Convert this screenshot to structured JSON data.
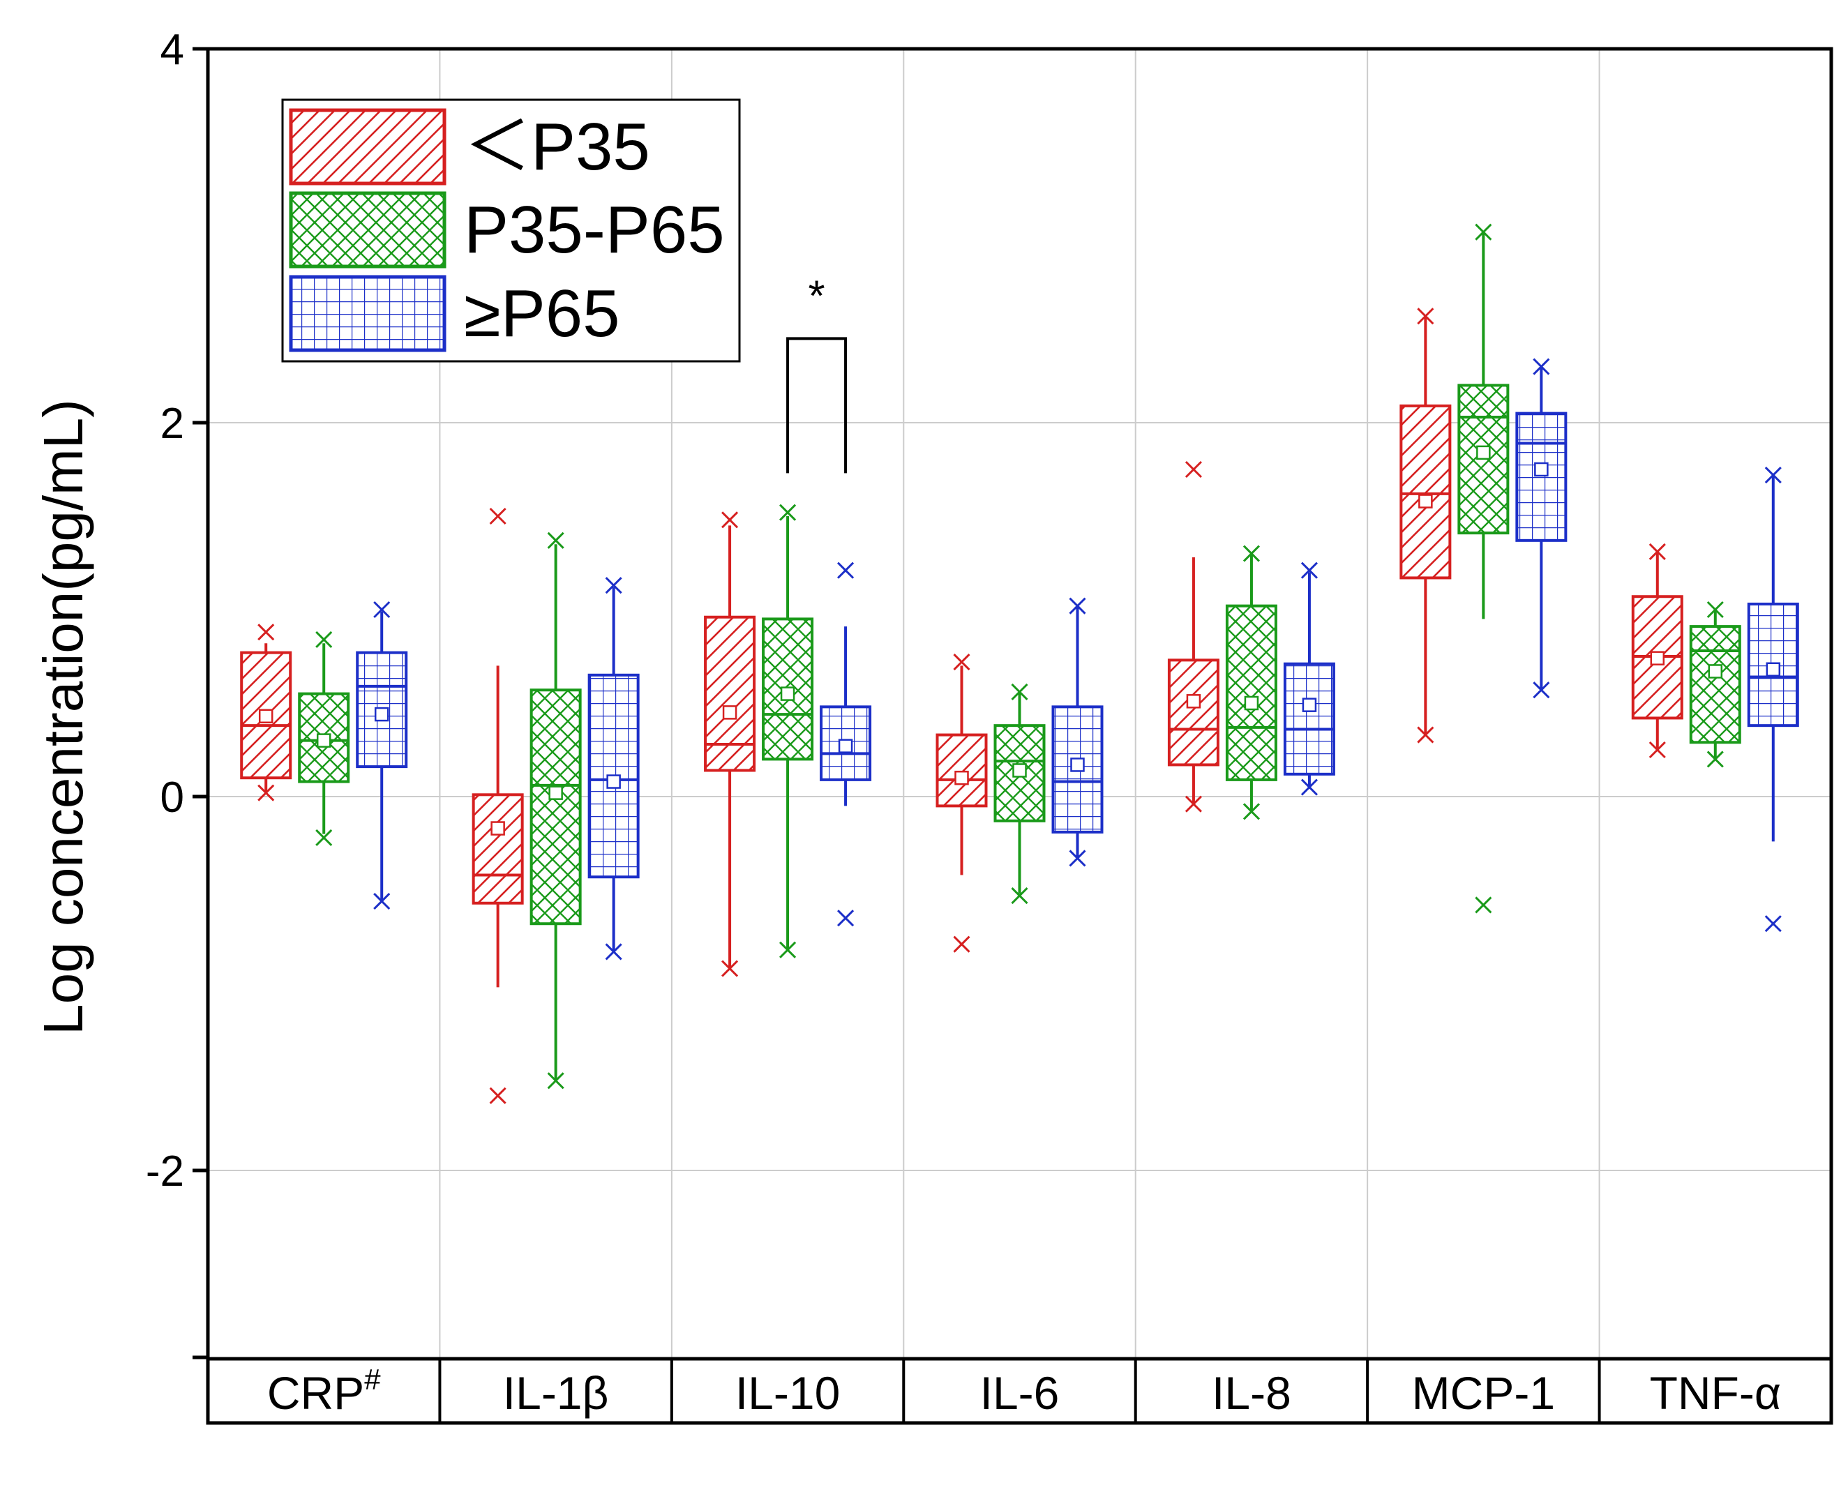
{
  "chart_data": {
    "type": "box",
    "ylabel": "Log concentration(pg/mL)",
    "ylim": [
      -3,
      4
    ],
    "yticks": [
      "4",
      "2",
      "0",
      "-2"
    ],
    "ytick_values": [
      4,
      2,
      0,
      -2
    ],
    "grid": true,
    "legend_position": "top-left",
    "categories": [
      {
        "name": "CRP",
        "superscript": "#"
      },
      {
        "name": "IL-1β",
        "superscript": ""
      },
      {
        "name": "IL-10",
        "superscript": ""
      },
      {
        "name": "IL-6",
        "superscript": ""
      },
      {
        "name": "IL-8",
        "superscript": ""
      },
      {
        "name": "MCP-1",
        "superscript": ""
      },
      {
        "name": "TNF-α",
        "superscript": ""
      }
    ],
    "series": [
      {
        "name": "＜P35",
        "color": "#d62020",
        "pattern": "diagonal",
        "boxes": [
          {
            "q1": 0.1,
            "median": 0.38,
            "q3": 0.77,
            "whisker_low": 0.02,
            "whisker_high": 0.82,
            "mean": 0.43,
            "min": 0.02,
            "max": 0.88
          },
          {
            "q1": -0.57,
            "median": -0.42,
            "q3": 0.01,
            "whisker_low": -1.02,
            "whisker_high": 0.7,
            "mean": -0.17,
            "min": -1.6,
            "max": 1.5
          },
          {
            "q1": 0.14,
            "median": 0.28,
            "q3": 0.96,
            "whisker_low": -0.92,
            "whisker_high": 1.45,
            "mean": 0.45,
            "min": -0.92,
            "max": 1.48
          },
          {
            "q1": -0.05,
            "median": 0.09,
            "q3": 0.33,
            "whisker_low": -0.42,
            "whisker_high": 0.7,
            "mean": 0.1,
            "min": -0.79,
            "max": 0.72
          },
          {
            "q1": 0.17,
            "median": 0.36,
            "q3": 0.73,
            "whisker_low": -0.04,
            "whisker_high": 1.28,
            "mean": 0.51,
            "min": -0.04,
            "max": 1.75
          },
          {
            "q1": 1.17,
            "median": 1.62,
            "q3": 2.09,
            "whisker_low": 0.33,
            "whisker_high": 2.57,
            "mean": 1.58,
            "min": 0.33,
            "max": 2.57
          },
          {
            "q1": 0.42,
            "median": 0.75,
            "q3": 1.07,
            "whisker_low": 0.25,
            "whisker_high": 1.31,
            "mean": 0.74,
            "min": 0.25,
            "max": 1.31
          }
        ]
      },
      {
        "name": "P35-P65",
        "color": "#1a9a1a",
        "pattern": "crosshatch",
        "boxes": [
          {
            "q1": 0.08,
            "median": 0.3,
            "q3": 0.55,
            "whisker_low": -0.2,
            "whisker_high": 0.82,
            "mean": 0.3,
            "min": -0.22,
            "max": 0.84
          },
          {
            "q1": -0.68,
            "median": 0.06,
            "q3": 0.57,
            "whisker_low": -1.52,
            "whisker_high": 1.35,
            "mean": 0.02,
            "min": -1.52,
            "max": 1.37
          },
          {
            "q1": 0.2,
            "median": 0.44,
            "q3": 0.95,
            "whisker_low": -0.82,
            "whisker_high": 1.5,
            "mean": 0.55,
            "min": -0.82,
            "max": 1.52
          },
          {
            "q1": -0.13,
            "median": 0.19,
            "q3": 0.38,
            "whisker_low": -0.52,
            "whisker_high": 0.56,
            "mean": 0.14,
            "min": -0.53,
            "max": 0.56
          },
          {
            "q1": 0.09,
            "median": 0.37,
            "q3": 1.02,
            "whisker_low": -0.08,
            "whisker_high": 1.3,
            "mean": 0.5,
            "min": -0.08,
            "max": 1.3
          },
          {
            "q1": 1.41,
            "median": 2.03,
            "q3": 2.2,
            "whisker_low": 0.95,
            "whisker_high": 3.02,
            "mean": 1.84,
            "min": -0.58,
            "max": 3.02
          },
          {
            "q1": 0.29,
            "median": 0.78,
            "q3": 0.91,
            "whisker_low": 0.2,
            "whisker_high": 1.0,
            "mean": 0.67,
            "min": 0.2,
            "max": 1.0
          }
        ]
      },
      {
        "name": "≥P65",
        "color": "#1c2fc8",
        "pattern": "grid",
        "boxes": [
          {
            "q1": 0.16,
            "median": 0.59,
            "q3": 0.77,
            "whisker_low": -0.56,
            "whisker_high": 0.99,
            "mean": 0.44,
            "min": -0.56,
            "max": 1.0
          },
          {
            "q1": -0.43,
            "median": 0.09,
            "q3": 0.65,
            "whisker_low": -0.83,
            "whisker_high": 1.12,
            "mean": 0.08,
            "min": -0.83,
            "max": 1.13
          },
          {
            "q1": 0.09,
            "median": 0.23,
            "q3": 0.48,
            "whisker_low": -0.05,
            "whisker_high": 0.91,
            "mean": 0.27,
            "min": -0.65,
            "max": 1.21
          },
          {
            "q1": -0.19,
            "median": 0.08,
            "q3": 0.48,
            "whisker_low": -0.33,
            "whisker_high": 1.02,
            "mean": 0.17,
            "min": -0.33,
            "max": 1.02
          },
          {
            "q1": 0.12,
            "median": 0.36,
            "q3": 0.71,
            "whisker_low": 0.05,
            "whisker_high": 1.2,
            "mean": 0.49,
            "min": 0.05,
            "max": 1.21
          },
          {
            "q1": 1.37,
            "median": 1.89,
            "q3": 2.05,
            "whisker_low": 0.57,
            "whisker_high": 2.3,
            "mean": 1.75,
            "min": 0.57,
            "max": 2.3
          },
          {
            "q1": 0.38,
            "median": 0.64,
            "q3": 1.03,
            "whisker_low": -0.24,
            "whisker_high": 1.72,
            "mean": 0.68,
            "min": -0.68,
            "max": 1.72
          }
        ]
      }
    ],
    "annotations": [
      {
        "text": "*",
        "category_index": 2,
        "from_series": 1,
        "to_series": 2,
        "bracket_top": 2.45,
        "bracket_bottom": 1.73
      }
    ]
  }
}
